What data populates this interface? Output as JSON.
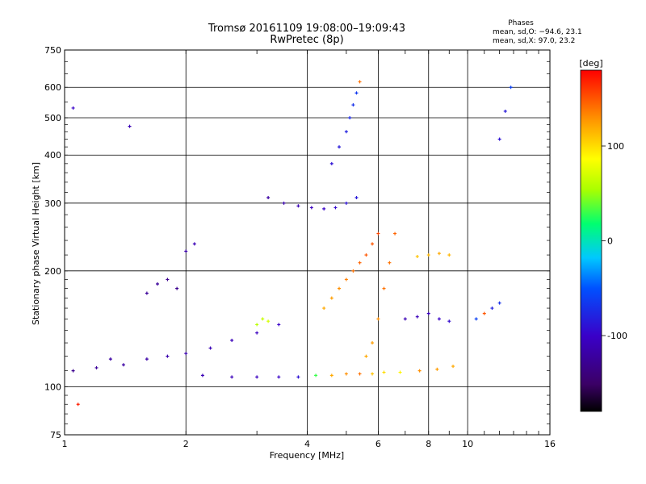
{
  "chart_data": {
    "type": "scatter",
    "title": "Tromsø 20161109 19:08:00–19:09:43",
    "subtitle": "RwPretec (8p)",
    "xlabel": "Frequency [MHz]",
    "ylabel": "Stationary phase Virtual Height [km]",
    "x_scale": "log",
    "y_scale": "log",
    "xlim": [
      1,
      16
    ],
    "ylim": [
      75,
      750
    ],
    "x_ticks": [
      1,
      2,
      4,
      6,
      8,
      10,
      16
    ],
    "y_ticks": [
      75,
      100,
      200,
      300,
      400,
      500,
      600,
      750
    ],
    "x_tick_labels": [
      "1",
      "2",
      "4",
      "6",
      "8",
      "10",
      "16"
    ],
    "y_tick_labels": [
      "75",
      "100",
      "200",
      "300",
      "400",
      "500",
      "600",
      "750"
    ],
    "grid": true,
    "color_variable": "Phase [deg]",
    "stats": {
      "header": "Phases",
      "line_o": "mean, sd,O: −94.6, 23.1",
      "line_x": "mean, sd,X:  97.0, 23.2"
    },
    "colorbar": {
      "label": "[deg]",
      "range": [
        -180,
        180
      ],
      "ticks": [
        100,
        0,
        -100
      ],
      "tick_labels": [
        "100",
        "0",
        "-100"
      ]
    },
    "series": [
      {
        "x": [
          1.05,
          1.2,
          1.4,
          1.6,
          1.8,
          2.0,
          2.3,
          2.6,
          3.0,
          3.4
        ],
        "y": [
          110,
          112,
          114,
          118,
          120,
          122,
          126,
          132,
          138,
          145
        ],
        "phase": [
          -130,
          -125,
          -120,
          -118,
          -115,
          -112,
          -110,
          -108,
          -105,
          -100
        ]
      },
      {
        "x": [
          2.2,
          2.6,
          3.0,
          3.4,
          3.8,
          4.2,
          4.6,
          5.0,
          5.4,
          5.8,
          6.2,
          6.8,
          7.6,
          8.4,
          9.2
        ],
        "y": [
          107,
          106,
          106,
          106,
          106,
          107,
          107,
          108,
          108,
          108,
          109,
          109,
          110,
          111,
          113
        ],
        "phase": [
          -110,
          -108,
          -105,
          -100,
          -90,
          30,
          120,
          130,
          140,
          110,
          100,
          90,
          130,
          125,
          120
        ]
      },
      {
        "x": [
          3.2,
          3.5,
          3.8,
          4.1,
          4.4,
          4.7,
          5.0,
          5.3
        ],
        "y": [
          310,
          300,
          295,
          292,
          290,
          292,
          300,
          310
        ],
        "phase": [
          -120,
          -115,
          -110,
          -105,
          -100,
          -95,
          -90,
          -85
        ]
      },
      {
        "x": [
          4.6,
          4.8,
          5.0,
          5.1,
          5.2,
          5.3,
          5.4
        ],
        "y": [
          380,
          420,
          460,
          500,
          540,
          580,
          620
        ],
        "phase": [
          -90,
          -85,
          -80,
          -75,
          -70,
          -65,
          140
        ]
      },
      {
        "x": [
          4.4,
          4.6,
          4.8,
          5.0,
          5.2,
          5.4,
          5.6,
          5.8,
          6.0
        ],
        "y": [
          160,
          170,
          180,
          190,
          200,
          210,
          220,
          235,
          250
        ],
        "phase": [
          120,
          125,
          130,
          135,
          140,
          145,
          150,
          150,
          155
        ]
      },
      {
        "x": [
          5.6,
          5.8,
          6.0,
          6.2,
          6.4,
          6.6
        ],
        "y": [
          120,
          130,
          150,
          180,
          210,
          250
        ],
        "phase": [
          120,
          125,
          130,
          140,
          140,
          145
        ]
      },
      {
        "x": [
          1.6,
          1.7,
          1.8,
          1.9
        ],
        "y": [
          175,
          185,
          190,
          180
        ],
        "phase": [
          -125,
          -125,
          -130,
          -130
        ]
      },
      {
        "x": [
          2.0,
          2.1
        ],
        "y": [
          225,
          235
        ],
        "phase": [
          -115,
          -110
        ]
      },
      {
        "x": [
          3.0,
          3.1,
          3.2
        ],
        "y": [
          145,
          150,
          148
        ],
        "phase": [
          60,
          65,
          70
        ]
      },
      {
        "x": [
          7.5,
          8.0,
          8.5,
          9.0
        ],
        "y": [
          218,
          220,
          222,
          220
        ],
        "phase": [
          110,
          115,
          120,
          115
        ]
      },
      {
        "x": [
          7.0,
          7.5,
          8.0,
          8.5,
          9.0
        ],
        "y": [
          150,
          152,
          155,
          150,
          148
        ],
        "phase": [
          -110,
          -108,
          -105,
          -100,
          -95
        ]
      },
      {
        "x": [
          10.5,
          11.0,
          11.5,
          12.0
        ],
        "y": [
          150,
          155,
          160,
          165
        ],
        "phase": [
          -60,
          150,
          -80,
          -70
        ]
      },
      {
        "x": [
          12.0,
          12.4,
          12.8
        ],
        "y": [
          440,
          520,
          600
        ],
        "phase": [
          -90,
          -85,
          -60
        ]
      },
      {
        "x": [
          1.05,
          1.08,
          1.3,
          1.45
        ],
        "y": [
          530,
          90,
          118,
          475
        ],
        "phase": [
          -100,
          170,
          -120,
          -110
        ]
      }
    ]
  }
}
